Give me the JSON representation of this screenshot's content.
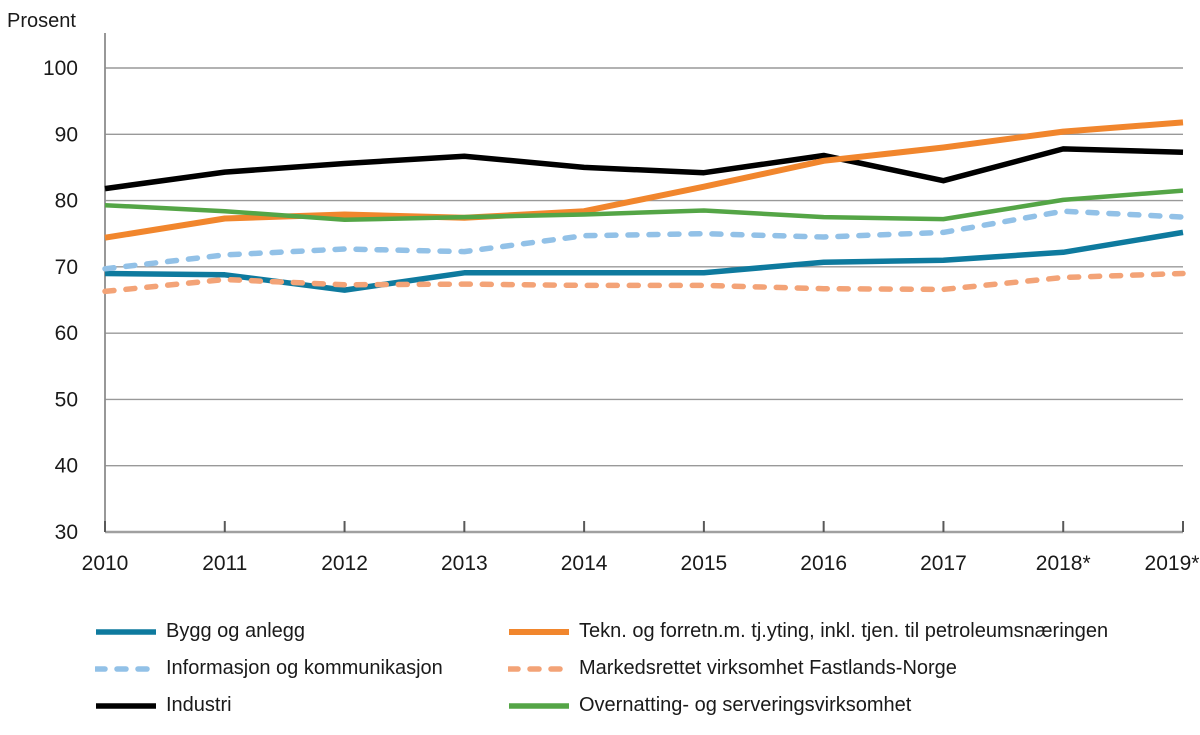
{
  "chart_data": {
    "type": "line",
    "title": "",
    "ylabel": "Prosent",
    "xlabel": "",
    "categories": [
      "2010",
      "2011",
      "2012",
      "2013",
      "2014",
      "2015",
      "2016",
      "2017",
      "2018*",
      "2019*"
    ],
    "ylim": [
      30,
      100
    ],
    "yticks": [
      30,
      40,
      50,
      60,
      70,
      80,
      90,
      100
    ],
    "grid": true,
    "legend_position": "bottom",
    "series": [
      {
        "name": "Bygg og anlegg",
        "color": "#0e7a9e",
        "style": "solid",
        "width": 5.5,
        "values": [
          69.0,
          68.8,
          66.5,
          69.1,
          69.1,
          69.1,
          70.7,
          71.0,
          72.2,
          75.2
        ]
      },
      {
        "name": "Informasjon og kommunikasjon",
        "color": "#92c1e7",
        "style": "dashed",
        "width": 5.5,
        "values": [
          69.7,
          71.8,
          72.7,
          72.3,
          74.7,
          75.0,
          74.5,
          75.2,
          78.4,
          77.5
        ]
      },
      {
        "name": "Industri",
        "color": "#000000",
        "style": "solid",
        "width": 5.5,
        "values": [
          81.8,
          84.3,
          85.6,
          86.7,
          85.0,
          84.2,
          86.8,
          83.0,
          87.8,
          87.3
        ]
      },
      {
        "name": "Tekn. og forretn.m. tj.yting, inkl. tjen. til petroleumsnæringen",
        "color": "#f1862d",
        "style": "solid",
        "width": 6,
        "values": [
          74.4,
          77.3,
          77.9,
          77.4,
          78.4,
          82.1,
          86.0,
          88.0,
          90.4,
          91.8
        ]
      },
      {
        "name": "Markedsrettet virksomhet Fastlands-Norge",
        "color": "#f3a377",
        "style": "dashed",
        "width": 5.5,
        "values": [
          66.3,
          68.1,
          67.3,
          67.4,
          67.2,
          67.2,
          66.7,
          66.6,
          68.4,
          69.0
        ]
      },
      {
        "name": "Overnatting- og serveringsvirksomhet",
        "color": "#54a546",
        "style": "solid",
        "width": 4.5,
        "values": [
          79.3,
          78.4,
          77.1,
          77.5,
          77.9,
          78.5,
          77.5,
          77.2,
          80.1,
          81.5
        ]
      }
    ],
    "legend_columns": [
      [
        0,
        1,
        2
      ],
      [
        3,
        4,
        5
      ]
    ]
  }
}
